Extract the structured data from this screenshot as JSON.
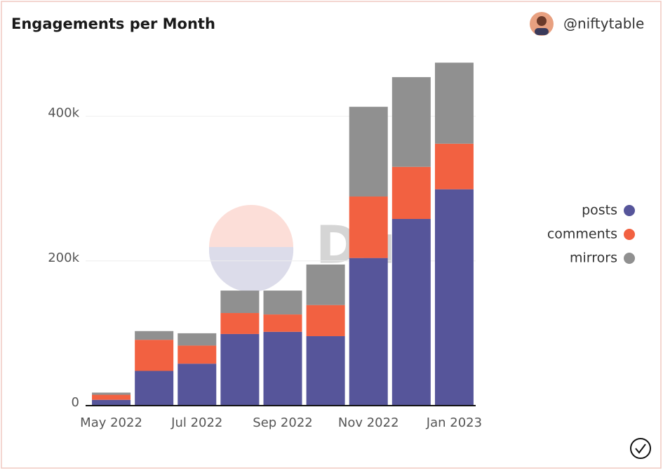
{
  "chart_data": {
    "type": "stacked_bar",
    "title": "Engagements per Month",
    "author": "@niftytable",
    "watermark": "Dune",
    "categories": [
      "May 2022",
      null,
      "Jul 2022",
      null,
      "Sep 2022",
      null,
      "Nov 2022",
      null,
      "Jan 2023"
    ],
    "series": [
      {
        "name": "posts",
        "color": "#56559a",
        "values": [
          8000,
          48000,
          58000,
          99000,
          102000,
          96000,
          204000,
          258000,
          299000
        ]
      },
      {
        "name": "comments",
        "color": "#f26141",
        "values": [
          7000,
          43000,
          25000,
          29000,
          24000,
          43000,
          85000,
          72000,
          63000
        ]
      },
      {
        "name": "mirrors",
        "color": "#909090",
        "values": [
          3000,
          12000,
          17000,
          31000,
          33000,
          56000,
          124000,
          124000,
          112000
        ]
      }
    ],
    "ylim": [
      0,
      483000
    ],
    "yticks": [
      {
        "value": 0,
        "label": "0"
      },
      {
        "value": 200000,
        "label": "200k"
      },
      {
        "value": 400000,
        "label": "400k"
      }
    ],
    "grid": true,
    "legend": "right"
  }
}
